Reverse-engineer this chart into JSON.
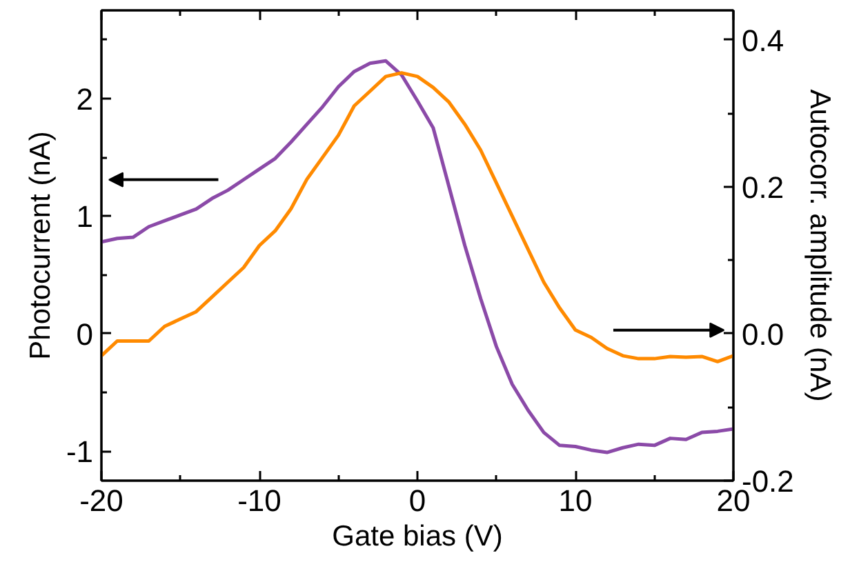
{
  "chart_data": {
    "type": "line",
    "xlabel": "Gate bias (V)",
    "ylabel": "Photocurrent (nA)",
    "y2label": "Autocorr. amplitude (nA)",
    "x": [
      -20,
      -19,
      -18,
      -17,
      -16,
      -15,
      -14,
      -13,
      -12,
      -11,
      -10,
      -9,
      -8,
      -7,
      -6,
      -5,
      -4,
      -3,
      -2,
      -1,
      0,
      1,
      2,
      3,
      4,
      5,
      6,
      7,
      8,
      9,
      10,
      11,
      12,
      13,
      14,
      15,
      16,
      17,
      18,
      19,
      20
    ],
    "series": [
      {
        "color": "#8b4aa8",
        "values": [
          0.78,
          0.81,
          0.82,
          0.91,
          0.96,
          1.01,
          1.06,
          1.15,
          1.22,
          1.31,
          1.4,
          1.49,
          1.63,
          1.78,
          1.93,
          2.1,
          2.23,
          2.3,
          2.32,
          2.2,
          1.98,
          1.75,
          1.25,
          0.75,
          0.3,
          -0.11,
          -0.43,
          -0.65,
          -0.84,
          -0.95,
          -0.96,
          -0.99,
          -1.01,
          -0.97,
          -0.94,
          -0.95,
          -0.89,
          -0.9,
          -0.84,
          -0.83,
          -0.81
        ]
      },
      {
        "color": "#ff8a00",
        "axis": "y2",
        "values": [
          -0.03,
          -0.01,
          -0.01,
          -0.01,
          0.01,
          0.02,
          0.03,
          0.05,
          0.07,
          0.09,
          0.12,
          0.14,
          0.17,
          0.21,
          0.24,
          0.27,
          0.31,
          0.33,
          0.35,
          0.355,
          0.35,
          0.335,
          0.315,
          0.285,
          0.25,
          0.205,
          0.16,
          0.115,
          0.07,
          0.035,
          0.005,
          -0.005,
          -0.02,
          -0.03,
          -0.034,
          -0.034,
          -0.031,
          -0.032,
          -0.031,
          -0.038,
          -0.03
        ]
      }
    ],
    "xlim": [
      -20,
      20
    ],
    "xticks": [
      -20,
      -10,
      0,
      10,
      20
    ],
    "ylim": [
      -1.25,
      2.75
    ],
    "yticks": [
      -1,
      0,
      1,
      2
    ],
    "y2lim": [
      -0.2,
      0.44
    ],
    "y2ticks": [
      {
        "value": -0.2,
        "label": "-0.2"
      },
      {
        "value": 0,
        "label": "0.0"
      },
      {
        "value": 0.2,
        "label": "0.2"
      },
      {
        "value": 0.4,
        "label": "0.4"
      }
    ],
    "grid": false
  }
}
